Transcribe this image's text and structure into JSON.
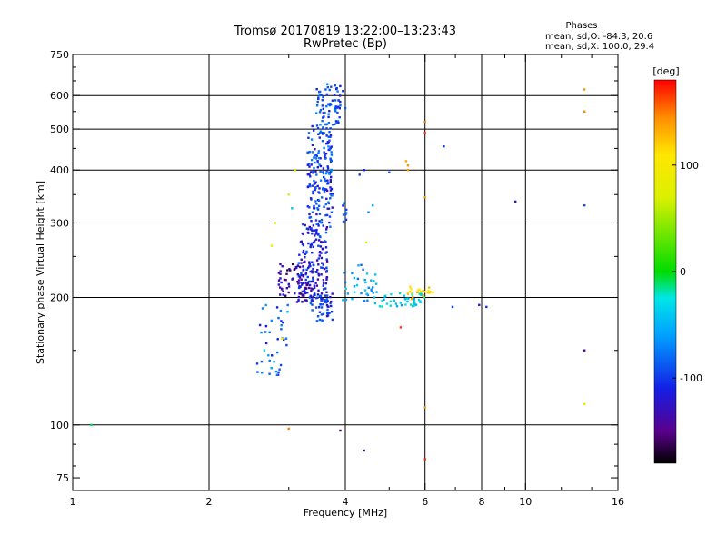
{
  "chart_data": {
    "type": "scatter",
    "title": "Tromsø 20170819 13:22:00–13:23:43",
    "subtitle": "RwPretec (Bp)",
    "stats": {
      "heading": "Phases",
      "line1": "mean, sd,O: -84.3, 20.6",
      "line2": "mean, sd,X: 100.0, 29.4"
    },
    "xlabel": "Frequency [MHz]",
    "ylabel": "Stationary phase Virtual Height [km]",
    "x_scale": "log",
    "y_scale": "log",
    "xlim": [
      1,
      16
    ],
    "ylim": [
      70,
      750
    ],
    "x_ticks": [
      1,
      2,
      4,
      6,
      8,
      10,
      16
    ],
    "x_tick_labels": [
      "1",
      "2",
      "4",
      "6",
      "8",
      "10",
      "16"
    ],
    "y_ticks": [
      75,
      100,
      200,
      300,
      400,
      500,
      600,
      750
    ],
    "y_tick_labels": [
      "75",
      "100",
      "200",
      "300",
      "400",
      "500",
      "600",
      "750"
    ],
    "x_minor_ticks": [
      3,
      5,
      7,
      9,
      12,
      14
    ],
    "y_minor_ticks": [
      80,
      90,
      150,
      250,
      350,
      450,
      550,
      650,
      700
    ],
    "grid": true,
    "colorbar": {
      "label": "[deg]",
      "range": [
        -180,
        180
      ],
      "ticks": [
        100,
        0,
        -100
      ],
      "tick_labels": [
        "100",
        "0",
        "-100"
      ],
      "colormap": "rainbow"
    },
    "point_clusters": [
      {
        "name": "ocusp",
        "type": "cloud",
        "count": 70,
        "xr": [
          3.45,
          3.9
        ],
        "yr": [
          510,
          640
        ],
        "pr": [
          -115,
          -70
        ]
      },
      {
        "name": "ocore",
        "type": "cloud",
        "count": 200,
        "xr": [
          3.3,
          3.75
        ],
        "yr": [
          280,
          520
        ],
        "pr": [
          -125,
          -70
        ]
      },
      {
        "name": "olow",
        "type": "cloud",
        "count": 170,
        "xr": [
          3.15,
          3.65
        ],
        "yr": [
          195,
          300
        ],
        "pr": [
          -140,
          -85
        ]
      },
      {
        "name": "obase",
        "type": "cloud",
        "count": 50,
        "xr": [
          3.35,
          3.75
        ],
        "yr": [
          175,
          205
        ],
        "pr": [
          -130,
          -80
        ]
      },
      {
        "name": "lowleft",
        "type": "cloud",
        "count": 60,
        "xr": [
          2.85,
          3.3
        ],
        "yr": [
          195,
          240
        ],
        "pr": [
          -165,
          -110
        ]
      },
      {
        "name": "tail",
        "type": "cloud",
        "count": 40,
        "xr": [
          2.55,
          3.0
        ],
        "yr": [
          130,
          195
        ],
        "pr": [
          -120,
          -50
        ]
      },
      {
        "name": "cusp-x",
        "type": "cloud",
        "count": 35,
        "xr": [
          3.95,
          4.7
        ],
        "yr": [
          195,
          240
        ],
        "pr": [
          -85,
          -35
        ]
      },
      {
        "name": "trace-x",
        "type": "cloud",
        "count": 45,
        "xr": [
          4.6,
          6.0
        ],
        "yr": [
          190,
          205
        ],
        "pr": [
          -60,
          -15
        ]
      },
      {
        "name": "trace-x-orange",
        "type": "cloud",
        "count": 20,
        "xr": [
          5.4,
          6.3
        ],
        "yr": [
          196,
          212
        ],
        "pr": [
          100,
          140
        ]
      },
      {
        "name": "trace-o-upper",
        "type": "cloud",
        "count": 8,
        "xr": [
          3.95,
          4.05
        ],
        "yr": [
          300,
          340
        ],
        "pr": [
          -110,
          -70
        ]
      },
      {
        "name": "scatter-o",
        "type": "points",
        "points": [
          [
            4.4,
            400,
            -110
          ],
          [
            5.0,
            395,
            -95
          ],
          [
            4.5,
            318,
            -70
          ],
          [
            4.6,
            330,
            -60
          ],
          [
            3.0,
            350,
            70
          ],
          [
            2.8,
            300,
            80
          ],
          [
            2.75,
            265,
            90
          ],
          [
            3.1,
            400,
            60
          ],
          [
            4.3,
            390,
            -100
          ],
          [
            4.45,
            270,
            70
          ],
          [
            3.95,
            615,
            -100
          ],
          [
            4.0,
            560,
            -90
          ]
        ]
      },
      {
        "name": "scatter-x",
        "type": "points",
        "points": [
          [
            5.45,
            420,
            135
          ],
          [
            5.5,
            410,
            140
          ],
          [
            5.5,
            400,
            140
          ],
          [
            6.0,
            345,
            140
          ],
          [
            6.0,
            490,
            165
          ],
          [
            6.0,
            520,
            150
          ],
          [
            6.0,
            110,
            140
          ],
          [
            6.0,
            83,
            170
          ],
          [
            5.3,
            170,
            165
          ],
          [
            6.6,
            455,
            -100
          ],
          [
            7.9,
            192,
            -110
          ],
          [
            8.2,
            190,
            -105
          ],
          [
            6.9,
            190,
            -100
          ],
          [
            9.5,
            337,
            -130
          ],
          [
            13.5,
            620,
            140
          ],
          [
            13.5,
            550,
            145
          ],
          [
            13.5,
            330,
            -90
          ],
          [
            13.5,
            150,
            -140
          ],
          [
            13.5,
            112,
            115
          ],
          [
            3.0,
            98,
            150
          ],
          [
            3.9,
            97,
            -160
          ],
          [
            4.4,
            87,
            -160
          ],
          [
            1.1,
            100,
            -10
          ],
          [
            2.65,
            150,
            -30
          ],
          [
            2.9,
            160,
            110
          ],
          [
            3.05,
            325,
            -40
          ]
        ]
      }
    ]
  }
}
